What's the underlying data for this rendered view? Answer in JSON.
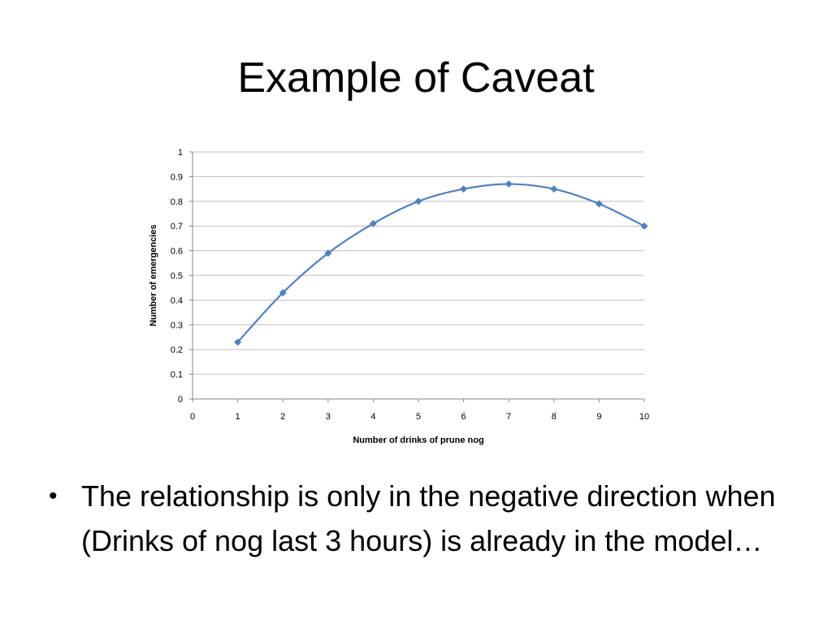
{
  "slide": {
    "title": "Example of Caveat",
    "bullet_text": "The relationship is only in the negative direction when (Drinks of nog last 3 hours) is already in the model…"
  },
  "chart_data": {
    "type": "line",
    "title": "",
    "xlabel": "Number of drinks of prune nog",
    "ylabel": "Number of emergencies",
    "xlim": [
      0,
      10
    ],
    "ylim": [
      0,
      1
    ],
    "x_ticks": [
      "0",
      "1",
      "2",
      "3",
      "4",
      "5",
      "6",
      "7",
      "8",
      "9",
      "10"
    ],
    "y_ticks": [
      "0",
      "0.1",
      "0.2",
      "0.3",
      "0.4",
      "0.5",
      "0.6",
      "0.7",
      "0.8",
      "0.9",
      "1"
    ],
    "grid": "horizontal",
    "legend": "none",
    "series": [
      {
        "color": "#4F81BD",
        "marker": "diamond",
        "smooth": true,
        "x": [
          1,
          2,
          3,
          4,
          5,
          6,
          7,
          8,
          9,
          10
        ],
        "y": [
          0.23,
          0.43,
          0.59,
          0.71,
          0.8,
          0.85,
          0.87,
          0.85,
          0.79,
          0.7
        ]
      }
    ]
  }
}
